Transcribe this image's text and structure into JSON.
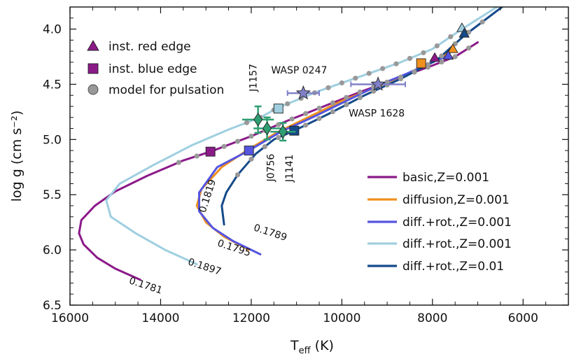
{
  "chart_data": {
    "type": "line",
    "xlabel": "T",
    "xlabel_sub": "eff",
    "xlabel_unit": " (K)",
    "ylabel": "log g (cm s⁻²)",
    "xlim": [
      16000,
      5000
    ],
    "ylim": [
      6.5,
      3.8
    ],
    "x_ticks": [
      16000,
      14000,
      12000,
      10000,
      8000,
      6000
    ],
    "x_tick_labels": [
      "16000",
      "14000",
      "12000",
      "10000",
      "8000",
      "6000"
    ],
    "y_ticks": [
      4.0,
      4.5,
      5.0,
      5.5,
      6.0,
      6.5
    ],
    "y_tick_labels": [
      "4.0",
      "4.5",
      "5.0",
      "5.5",
      "6.0",
      "6.5"
    ],
    "series": [
      {
        "name": "basic,Z=0.001",
        "color": "#8b1a89",
        "points": [
          [
            14450,
            6.27
          ],
          [
            15000,
            6.17
          ],
          [
            15400,
            6.07
          ],
          [
            15700,
            5.95
          ],
          [
            15800,
            5.85
          ],
          [
            15750,
            5.73
          ],
          [
            15450,
            5.6
          ],
          [
            15000,
            5.47
          ],
          [
            14300,
            5.33
          ],
          [
            13500,
            5.19
          ],
          [
            12900,
            5.11
          ],
          [
            12000,
            4.97
          ],
          [
            11200,
            4.83
          ],
          [
            10400,
            4.7
          ],
          [
            9600,
            4.57
          ],
          [
            8800,
            4.45
          ],
          [
            8000,
            4.33
          ],
          [
            7500,
            4.25
          ],
          [
            7000,
            4.12
          ]
        ]
      },
      {
        "name": "diffusion,Z=0.001",
        "color": "#f0901e",
        "points": [
          [
            12050,
            6.0
          ],
          [
            12600,
            5.88
          ],
          [
            13000,
            5.75
          ],
          [
            13200,
            5.6
          ],
          [
            13100,
            5.45
          ],
          [
            12650,
            5.25
          ],
          [
            12100,
            5.1
          ],
          [
            11400,
            4.93
          ],
          [
            10700,
            4.79
          ],
          [
            10000,
            4.65
          ],
          [
            9200,
            4.52
          ],
          [
            8700,
            4.43
          ],
          [
            8200,
            4.34
          ],
          [
            7900,
            4.28
          ],
          [
            7550,
            4.19
          ]
        ]
      },
      {
        "name": "diff.+rot.,Z=0.001",
        "color": "#5555e0",
        "points": [
          [
            11800,
            6.04
          ],
          [
            12400,
            5.92
          ],
          [
            12850,
            5.8
          ],
          [
            13150,
            5.65
          ],
          [
            13150,
            5.48
          ],
          [
            12750,
            5.25
          ],
          [
            12050,
            5.1
          ],
          [
            11350,
            4.93
          ],
          [
            10600,
            4.79
          ],
          [
            9900,
            4.65
          ],
          [
            9200,
            4.51
          ],
          [
            8600,
            4.41
          ],
          [
            8000,
            4.3
          ],
          [
            7650,
            4.24
          ]
        ]
      },
      {
        "name": "diff.+rot.,Z=0.001",
        "color": "#9fcfe0",
        "points": [
          [
            13200,
            6.13
          ],
          [
            13900,
            6.0
          ],
          [
            14550,
            5.85
          ],
          [
            15100,
            5.7
          ],
          [
            15200,
            5.55
          ],
          [
            14900,
            5.4
          ],
          [
            14150,
            5.23
          ],
          [
            13300,
            5.05
          ],
          [
            12500,
            4.91
          ],
          [
            11800,
            4.8
          ],
          [
            11400,
            4.71
          ],
          [
            10500,
            4.56
          ],
          [
            9600,
            4.43
          ],
          [
            8700,
            4.3
          ],
          [
            8000,
            4.18
          ],
          [
            7350,
            4.0
          ],
          [
            6500,
            3.78
          ]
        ]
      },
      {
        "name": "diff.+rot.,Z=0.01",
        "color": "#154a8a",
        "points": [
          [
            12600,
            5.77
          ],
          [
            12650,
            5.6
          ],
          [
            12550,
            5.48
          ],
          [
            12300,
            5.32
          ],
          [
            11900,
            5.13
          ],
          [
            11500,
            5.0
          ],
          [
            11050,
            4.92
          ],
          [
            10300,
            4.77
          ],
          [
            9500,
            4.6
          ],
          [
            8700,
            4.45
          ],
          [
            7900,
            4.28
          ],
          [
            7300,
            4.06
          ],
          [
            6400,
            3.78
          ]
        ]
      }
    ],
    "model_points": [
      {
        "series": 0,
        "x": [
          13600,
          13200,
          12900,
          12600,
          12300,
          12000,
          11700,
          11400,
          11100,
          10800,
          10500,
          10200,
          9900,
          9600,
          9300,
          9000,
          8700,
          8400,
          8100,
          7800,
          7500,
          7200
        ]
      },
      {
        "series": 3,
        "x": [
          12100,
          11800,
          11500,
          11200,
          10900,
          10600,
          10300,
          10000,
          9700,
          9400,
          9100,
          8800,
          8500,
          8200,
          7900,
          7600
        ]
      },
      {
        "series": 4,
        "x": [
          12300,
          12000,
          11700,
          11400,
          11100,
          10800,
          10500,
          10200,
          9900,
          9600,
          9300,
          9000,
          8700,
          8400,
          8100,
          7800,
          7500,
          7200,
          6900
        ]
      }
    ],
    "red_edges": [
      {
        "x": 7350,
        "y": 3.99,
        "color": "#9fcfe0"
      },
      {
        "x": 7300,
        "y": 4.04,
        "color": "#154a8a"
      },
      {
        "x": 7550,
        "y": 4.18,
        "color": "#f0901e"
      },
      {
        "x": 7650,
        "y": 4.24,
        "color": "#5555e0"
      },
      {
        "x": 7950,
        "y": 4.26,
        "color": "#8b1a89"
      }
    ],
    "blue_edges": [
      {
        "x": 12900,
        "y": 5.11,
        "color": "#8b1a89"
      },
      {
        "x": 12050,
        "y": 5.1,
        "color": "#5555e0"
      },
      {
        "x": 11400,
        "y": 4.72,
        "color": "#9fcfe0"
      },
      {
        "x": 11050,
        "y": 4.92,
        "color": "#154a8a"
      },
      {
        "x": 8250,
        "y": 4.31,
        "color": "#f0901e"
      }
    ],
    "stars": [
      {
        "label": "WASP 0247",
        "x": 10850,
        "y": 4.58,
        "xerr": 350,
        "yerr": 0.03
      },
      {
        "label": "WASP 1628",
        "x": 9200,
        "y": 4.5,
        "xerr": 600,
        "yerr": 0.04
      }
    ],
    "diamonds": [
      {
        "label": "J1157",
        "x": 11850,
        "y": 4.82,
        "xerr": 350,
        "yerr": 0.12
      },
      {
        "label": "J0756",
        "x": 11650,
        "y": 4.9,
        "xerr": 300,
        "yerr": 0.1
      },
      {
        "label": "J1141",
        "x": 11300,
        "y": 4.93,
        "xerr": 280,
        "yerr": 0.08
      }
    ],
    "mass_labels": [
      {
        "text": "0.1781",
        "x": 14350,
        "y": 6.35
      },
      {
        "text": "0.1897",
        "x": 13050,
        "y": 6.18
      },
      {
        "text": "0.1795",
        "x": 12400,
        "y": 6.01
      },
      {
        "text": "0.1789",
        "x": 11600,
        "y": 5.87
      },
      {
        "text": "0.1819",
        "x": 12900,
        "y": 5.52
      }
    ],
    "legend_markers": [
      {
        "label": "inst. red edge",
        "shape": "triangle",
        "color": "#8b1a89"
      },
      {
        "label": "inst. blue edge",
        "shape": "square",
        "color": "#8b1a89"
      },
      {
        "label": "model for pulsation",
        "shape": "circle",
        "color": "#999999"
      }
    ],
    "legend_lines": [
      {
        "label": "basic,Z=0.001",
        "color": "#8b1a89"
      },
      {
        "label": "diffusion,Z=0.001",
        "color": "#f0901e"
      },
      {
        "label": "diff.+rot.,Z=0.001",
        "color": "#5555e0"
      },
      {
        "label": "diff.+rot.,Z=0.001",
        "color": "#9fcfe0"
      },
      {
        "label": "diff.+rot.,Z=0.01",
        "color": "#154a8a"
      }
    ],
    "star_color": "#8080c8",
    "diamond_color": "#2e9e72",
    "model_point_color": "#999999"
  }
}
